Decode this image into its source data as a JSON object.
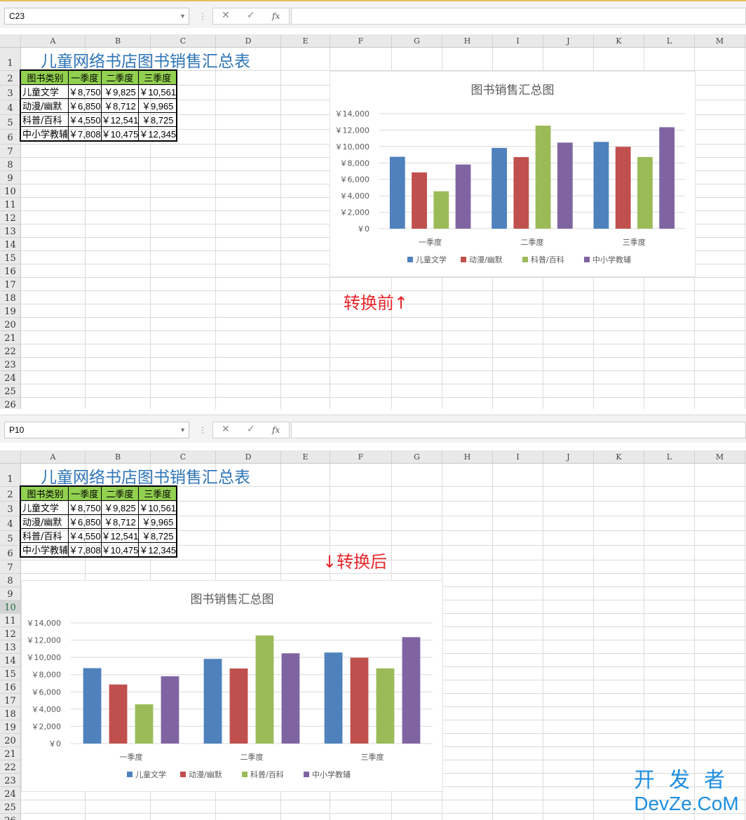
{
  "panes": [
    {
      "name_box": "C23",
      "note": "转换前↑"
    },
    {
      "name_box": "P10",
      "note": "↓转换后"
    }
  ],
  "formula_bar": {
    "cancel": "✕",
    "enter": "✓",
    "fx": "fx"
  },
  "columns": [
    "A",
    "B",
    "C",
    "D",
    "E",
    "F",
    "G",
    "H",
    "I",
    "J",
    "K",
    "L",
    "M"
  ],
  "rows": [
    "1",
    "2",
    "3",
    "4",
    "5",
    "6",
    "7",
    "8",
    "9",
    "10",
    "11",
    "12",
    "13",
    "14",
    "15",
    "16",
    "17",
    "18",
    "19",
    "20",
    "21",
    "22",
    "23",
    "24",
    "25",
    "26"
  ],
  "sheet": {
    "title": "儿童网络书店图书销售汇总表",
    "headers": [
      "图书类别",
      "一季度",
      "二季度",
      "三季度"
    ],
    "rows": [
      [
        "儿童文学",
        "￥8,750",
        "￥9,825",
        "￥10,561"
      ],
      [
        "动漫/幽默",
        "￥6,850",
        "￥8,712",
        "￥9,965"
      ],
      [
        "科普/百科",
        "￥4,550",
        "￥12,541",
        "￥8,725"
      ],
      [
        "中小学教辅",
        "￥7,808",
        "￥10,475",
        "￥12,345"
      ]
    ]
  },
  "chart_data": {
    "type": "bar",
    "title": "图书销售汇总图",
    "categories": [
      "一季度",
      "二季度",
      "三季度"
    ],
    "series": [
      {
        "name": "儿童文学",
        "values": [
          8750,
          9825,
          10561
        ],
        "color": "#4f81bd"
      },
      {
        "name": "动漫/幽默",
        "values": [
          6850,
          8712,
          9965
        ],
        "color": "#c0504d"
      },
      {
        "name": "科普/百科",
        "values": [
          4550,
          12541,
          8725
        ],
        "color": "#9bbb59"
      },
      {
        "name": "中小学教辅",
        "values": [
          7808,
          10475,
          12345
        ],
        "color": "#8064a2"
      }
    ],
    "ylim": [
      0,
      14000
    ],
    "yticks": [
      "￥0",
      "￥2,000",
      "￥4,000",
      "￥6,000",
      "￥8,000",
      "￥10,000",
      "￥12,000",
      "￥14,000"
    ],
    "legend": "bottom",
    "grid": true
  },
  "watermark": {
    "cn": "开发者",
    "en": "DevZe.CoM"
  }
}
